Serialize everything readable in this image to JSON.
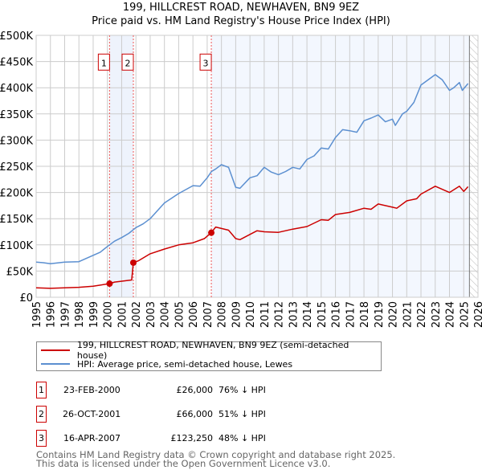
{
  "chart_data": {
    "type": "line",
    "title": "199, HILLCREST ROAD, NEWHAVEN, BN9 9EZ",
    "subtitle": "Price paid vs. HM Land Registry's House Price Index (HPI)",
    "xlim": [
      1995,
      2026
    ],
    "ylim": [
      0,
      500000
    ],
    "y_ticks": [
      0,
      50000,
      100000,
      150000,
      200000,
      250000,
      300000,
      350000,
      400000,
      450000,
      500000
    ],
    "y_tick_labels": [
      "£0",
      "£50K",
      "£100K",
      "£150K",
      "£200K",
      "£250K",
      "£300K",
      "£350K",
      "£400K",
      "£450K",
      "£500K"
    ],
    "x_tick_labels": [
      "1995",
      "1996",
      "1997",
      "1998",
      "1999",
      "2000",
      "2001",
      "2002",
      "2003",
      "2004",
      "2005",
      "2006",
      "2007",
      "2008",
      "2009",
      "2010",
      "2011",
      "2012",
      "2013",
      "2014",
      "2015",
      "2016",
      "2017",
      "2018",
      "2019",
      "2020",
      "2021",
      "2022",
      "2023",
      "2024",
      "2025",
      "2026"
    ],
    "grid": true,
    "series": [
      {
        "name": "199, HILLCREST ROAD, NEWHAVEN, BN9 9EZ (semi-detached house)",
        "color": "#cc0000",
        "x": [
          1995,
          1996,
          1997,
          1998,
          1999,
          2000.15,
          2000.5,
          2001.7,
          2001.82,
          2002.2,
          2003,
          2004,
          2005,
          2006,
          2006.8,
          2007.29,
          2007.6,
          2008.5,
          2009,
          2009.3,
          2010,
          2010.5,
          2011,
          2012,
          2013,
          2014,
          2015,
          2015.5,
          2016,
          2017,
          2018,
          2018.5,
          2019,
          2020,
          2020.3,
          2021,
          2021.7,
          2022,
          2023,
          2024,
          2024.3,
          2024.7,
          2025,
          2025.3
        ],
        "values": [
          18000,
          17000,
          18000,
          19000,
          21000,
          26000,
          29000,
          33000,
          66000,
          70000,
          83000,
          92000,
          100000,
          104000,
          112000,
          123250,
          134000,
          128000,
          112000,
          110000,
          120000,
          127000,
          125000,
          124000,
          130000,
          135000,
          148000,
          147000,
          158000,
          162000,
          170000,
          168000,
          178000,
          172000,
          170000,
          184000,
          188000,
          197000,
          212000,
          200000,
          205000,
          212000,
          202000,
          211000
        ]
      },
      {
        "name": "HPI: Average price, semi-detached house, Lewes",
        "color": "#5b8fd0",
        "x": [
          1995,
          1995.5,
          1996,
          1997,
          1998,
          1999,
          1999.5,
          2000,
          2000.5,
          2001,
          2001.5,
          2002,
          2002.5,
          2003,
          2004,
          2005,
          2006,
          2006.5,
          2007,
          2007.3,
          2007.6,
          2008,
          2008.5,
          2009,
          2009.3,
          2010,
          2010.5,
          2011,
          2011.5,
          2012,
          2012.5,
          2013,
          2013.5,
          2014,
          2014.5,
          2015,
          2015.5,
          2016,
          2016.5,
          2017,
          2017.5,
          2018,
          2018.5,
          2019,
          2019.5,
          2020,
          2020.2,
          2020.7,
          2021,
          2021.5,
          2022,
          2022.5,
          2023,
          2023.5,
          2024,
          2024.3,
          2024.7,
          2024.9,
          2025.3
        ],
        "values": [
          67000,
          66000,
          64000,
          67000,
          68000,
          80000,
          86000,
          97000,
          107000,
          114000,
          122000,
          133000,
          140000,
          150000,
          180000,
          198000,
          213000,
          212000,
          228000,
          240000,
          245000,
          253000,
          248000,
          210000,
          208000,
          228000,
          232000,
          248000,
          239000,
          234000,
          240000,
          248000,
          245000,
          263000,
          270000,
          285000,
          283000,
          305000,
          320000,
          318000,
          315000,
          337000,
          342000,
          348000,
          335000,
          340000,
          328000,
          350000,
          355000,
          372000,
          405000,
          415000,
          425000,
          415000,
          395000,
          400000,
          410000,
          395000,
          408000
        ]
      }
    ],
    "sales": [
      {
        "label": "1",
        "year": 2000.15,
        "price": 26000,
        "date": "23-FEB-2000",
        "price_text": "£26,000",
        "hpi_text": "76% ↓ HPI"
      },
      {
        "label": "2",
        "year": 2001.82,
        "price": 66000,
        "date": "26-OCT-2001",
        "price_text": "£66,000",
        "hpi_text": "51% ↓ HPI"
      },
      {
        "label": "3",
        "year": 2007.29,
        "price": 123250,
        "date": "16-APR-2007",
        "price_text": "£123,250",
        "hpi_text": "48% ↓ HPI"
      }
    ],
    "forecast_start": 2025.4,
    "legend": [
      "199, HILLCREST ROAD, NEWHAVEN, BN9 9EZ (semi-detached house)",
      "HPI: Average price, semi-detached house, Lewes"
    ]
  },
  "footer": {
    "line1": "Contains HM Land Registry data © Crown copyright and database right 2025.",
    "line2": "This data is licensed under the Open Government Licence v3.0."
  }
}
